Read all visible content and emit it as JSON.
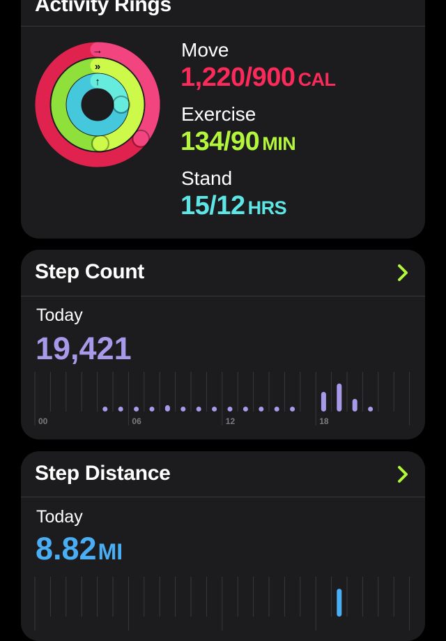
{
  "activity": {
    "title": "Activity Rings",
    "move": {
      "label": "Move",
      "value": "1,220/900",
      "unit": "CAL",
      "color": "#fa2a5a",
      "progress": 1.356
    },
    "exercise": {
      "label": "Exercise",
      "value": "134/90",
      "unit": "MIN",
      "color": "#b4f63c",
      "progress": 1.489
    },
    "stand": {
      "label": "Stand",
      "value": "15/12",
      "unit": "HRS",
      "color": "#5ee6e6",
      "progress": 1.25
    }
  },
  "steps": {
    "title": "Step Count",
    "period": "Today",
    "value": "19,421",
    "color": "#a89ae8",
    "chevron_color": "#b4f63c",
    "chart_data": {
      "type": "bar",
      "x_tick_labels": [
        "00",
        "06",
        "12",
        "18"
      ],
      "hours": [
        4,
        5,
        6,
        7,
        8,
        9,
        10,
        11,
        12,
        13,
        14,
        15,
        16,
        18,
        19,
        20,
        21
      ],
      "values": [
        150,
        600,
        230,
        780,
        1400,
        150,
        150,
        780,
        230,
        470,
        310,
        230,
        150,
        4350,
        6200,
        2800,
        150
      ],
      "ylim": [
        0,
        8800
      ]
    }
  },
  "distance": {
    "title": "Step Distance",
    "period": "Today",
    "value": "8.82",
    "unit": "MI",
    "color": "#4aaef5",
    "chart_data": {
      "type": "bar",
      "hours": [
        19
      ],
      "values": [
        2.8
      ],
      "ylim": [
        0,
        4
      ]
    }
  }
}
